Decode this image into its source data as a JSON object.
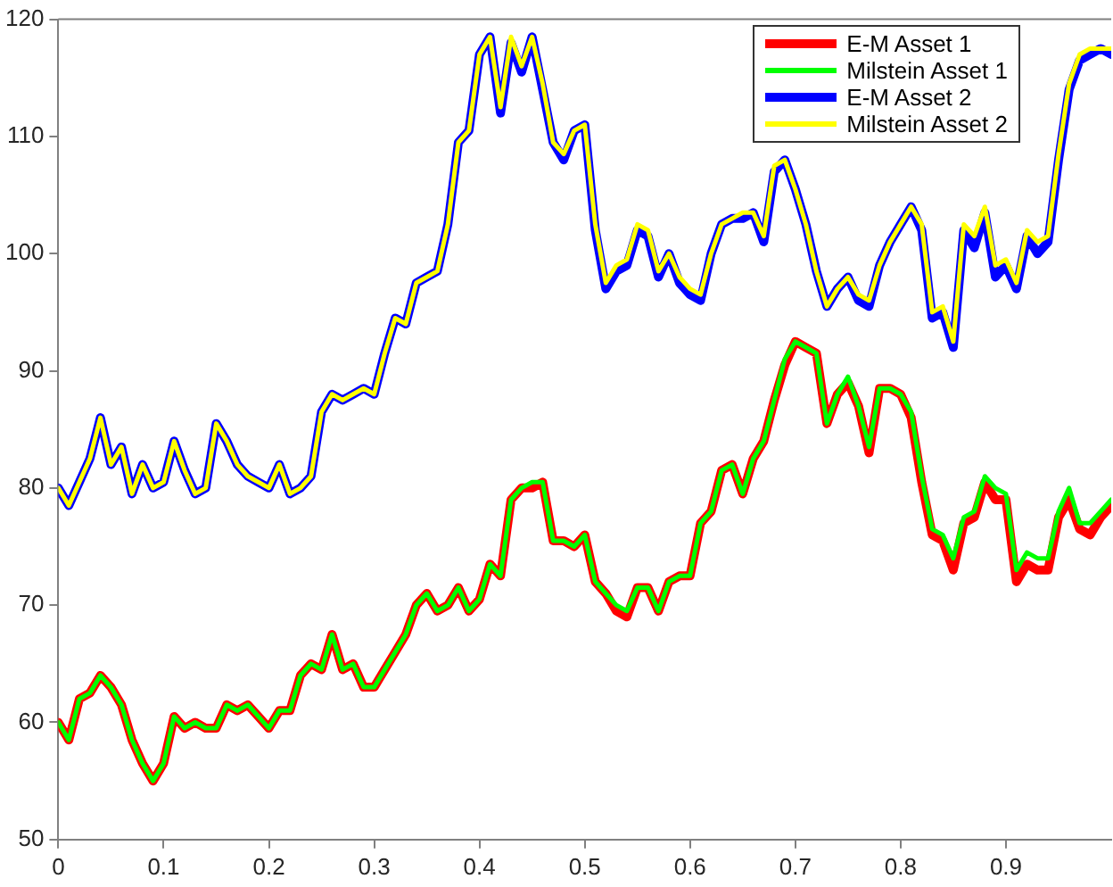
{
  "chart_data": {
    "type": "line",
    "x": [
      0,
      0.01,
      0.02,
      0.03,
      0.04,
      0.05,
      0.06,
      0.07,
      0.08,
      0.09,
      0.1,
      0.11,
      0.12,
      0.13,
      0.14,
      0.15,
      0.16,
      0.17,
      0.18,
      0.19,
      0.2,
      0.21,
      0.22,
      0.23,
      0.24,
      0.25,
      0.26,
      0.27,
      0.28,
      0.29,
      0.3,
      0.31,
      0.32,
      0.33,
      0.34,
      0.35,
      0.36,
      0.37,
      0.38,
      0.39,
      0.4,
      0.41,
      0.42,
      0.43,
      0.44,
      0.45,
      0.46,
      0.47,
      0.48,
      0.49,
      0.5,
      0.51,
      0.52,
      0.53,
      0.54,
      0.55,
      0.56,
      0.57,
      0.58,
      0.59,
      0.6,
      0.61,
      0.62,
      0.63,
      0.64,
      0.65,
      0.66,
      0.67,
      0.68,
      0.69,
      0.7,
      0.71,
      0.72,
      0.73,
      0.74,
      0.75,
      0.76,
      0.77,
      0.78,
      0.79,
      0.8,
      0.81,
      0.82,
      0.83,
      0.84,
      0.85,
      0.86,
      0.87,
      0.88,
      0.89,
      0.9,
      0.91,
      0.92,
      0.93,
      0.94,
      0.95,
      0.96,
      0.97,
      0.98,
      0.99,
      1
    ],
    "series": [
      {
        "name": "E-M Asset 1",
        "color": "#ff0000",
        "values": [
          60,
          58.5,
          62,
          62.5,
          64,
          63,
          61.5,
          58.5,
          56.5,
          55,
          56.5,
          60.5,
          59.5,
          60,
          59.5,
          59.5,
          61.5,
          61,
          61.5,
          60.5,
          59.5,
          61,
          61,
          64,
          65,
          64.5,
          67.5,
          64.5,
          65,
          63,
          63,
          64.5,
          66,
          67.5,
          70,
          71,
          69.5,
          70,
          71.5,
          69.5,
          70.5,
          73.5,
          72.5,
          79,
          80,
          80,
          80.5,
          75.5,
          75.5,
          75,
          76,
          72,
          71,
          69.5,
          69,
          71.5,
          71.5,
          69.5,
          72,
          72.5,
          72.5,
          77,
          78,
          81.5,
          82,
          79.5,
          82.5,
          84,
          87.5,
          90.5,
          92.5,
          92,
          91.5,
          85.5,
          88,
          89,
          87,
          83,
          88.5,
          88.5,
          88,
          86,
          80.5,
          76,
          75.5,
          73,
          77,
          77.5,
          80.5,
          79,
          79,
          72,
          73.5,
          73,
          73,
          77.5,
          79,
          76.5,
          76,
          77.5,
          78.5
        ]
      },
      {
        "name": "Milstein Asset 1",
        "color": "#00ff00",
        "values": [
          60,
          58.5,
          62,
          62.5,
          64,
          63,
          61.5,
          58.5,
          56.5,
          55,
          56.5,
          60.5,
          59.5,
          60,
          59.5,
          59.5,
          61.5,
          61,
          61.5,
          60.5,
          59.5,
          61,
          61,
          64,
          65,
          64.5,
          67.5,
          64.5,
          65,
          63,
          63,
          64.5,
          66,
          67.5,
          70,
          71,
          69.5,
          70,
          71.5,
          69.5,
          70.5,
          73.5,
          72.5,
          79,
          80,
          80.5,
          80.5,
          75.5,
          75.5,
          75,
          76,
          72,
          71,
          70,
          69.5,
          71.5,
          71.5,
          69.5,
          72,
          72.5,
          72.5,
          77,
          78,
          81.5,
          82,
          79.5,
          82.5,
          84,
          87.5,
          91,
          92.5,
          92,
          91.5,
          85.5,
          88,
          89.5,
          87,
          83.5,
          88.5,
          88.5,
          88,
          86.5,
          81,
          76.5,
          76,
          74,
          77.5,
          78,
          81,
          80,
          79.5,
          73,
          74.5,
          74,
          74,
          78,
          80,
          77,
          77,
          78,
          79
        ]
      },
      {
        "name": "E-M Asset 2",
        "color": "#0000ff",
        "values": [
          80,
          78.5,
          80.5,
          82.5,
          86,
          82,
          83.5,
          79.5,
          82,
          80,
          80.5,
          84,
          81.5,
          79.5,
          80,
          85.5,
          84,
          82,
          81,
          80.5,
          80,
          82,
          79.5,
          80,
          81,
          86.5,
          88,
          87.5,
          88,
          88.5,
          88,
          91.5,
          94.5,
          94,
          97.5,
          98,
          98.5,
          102.5,
          109.5,
          110.5,
          117,
          118.5,
          112,
          118,
          115.5,
          118.5,
          114,
          109.5,
          108,
          110.5,
          111,
          102,
          97,
          98.5,
          99,
          102,
          101.5,
          98,
          100,
          97.5,
          96.5,
          96,
          100,
          102.5,
          103,
          103,
          103.5,
          101,
          107,
          108,
          105.5,
          102.5,
          98.5,
          95.5,
          97,
          98,
          96,
          95.5,
          99,
          101,
          102.5,
          104,
          102,
          94.5,
          95,
          92,
          102,
          100.5,
          103.5,
          98,
          99,
          97,
          101.5,
          100,
          101,
          108,
          114,
          116.5,
          117,
          117.5,
          117
        ]
      },
      {
        "name": "Milstein Asset 2",
        "color": "#ffff00",
        "values": [
          80,
          78.5,
          80.5,
          82.5,
          86,
          82,
          83.5,
          79.5,
          82,
          80,
          80.5,
          84,
          81.5,
          79.5,
          80,
          85.5,
          84,
          82,
          81,
          80.5,
          80,
          82,
          79.5,
          80,
          81,
          86.5,
          88,
          87.5,
          88,
          88.5,
          88,
          91.5,
          94.5,
          94,
          97.5,
          98,
          98.5,
          102.5,
          109.5,
          110.5,
          117,
          118.5,
          112.5,
          118.5,
          116,
          118.5,
          114.5,
          109.5,
          108.5,
          110.5,
          111,
          102.5,
          97.5,
          99,
          99.5,
          102.5,
          102,
          98.5,
          100,
          98,
          97,
          96.5,
          100,
          102.5,
          103,
          103.5,
          103.5,
          101.5,
          107.5,
          108,
          105.5,
          102.5,
          98.5,
          95.5,
          97,
          98,
          96.5,
          96,
          99,
          101,
          102.5,
          104,
          102.5,
          95,
          95.5,
          92.5,
          102.5,
          101.5,
          104,
          99,
          99.5,
          97.5,
          102,
          101,
          101.5,
          108.5,
          114.5,
          117,
          117.5,
          117.5,
          117.5
        ]
      }
    ],
    "xlim": [
      0,
      1
    ],
    "xticks": [
      0,
      0.1,
      0.2,
      0.3,
      0.4,
      0.5,
      0.6,
      0.7,
      0.8,
      0.9
    ],
    "ylim": [
      50,
      120
    ],
    "yticks": [
      50,
      60,
      70,
      80,
      90,
      100,
      110,
      120
    ],
    "grid": false,
    "legend": "top right",
    "marker": "none",
    "line_style": "solid"
  }
}
